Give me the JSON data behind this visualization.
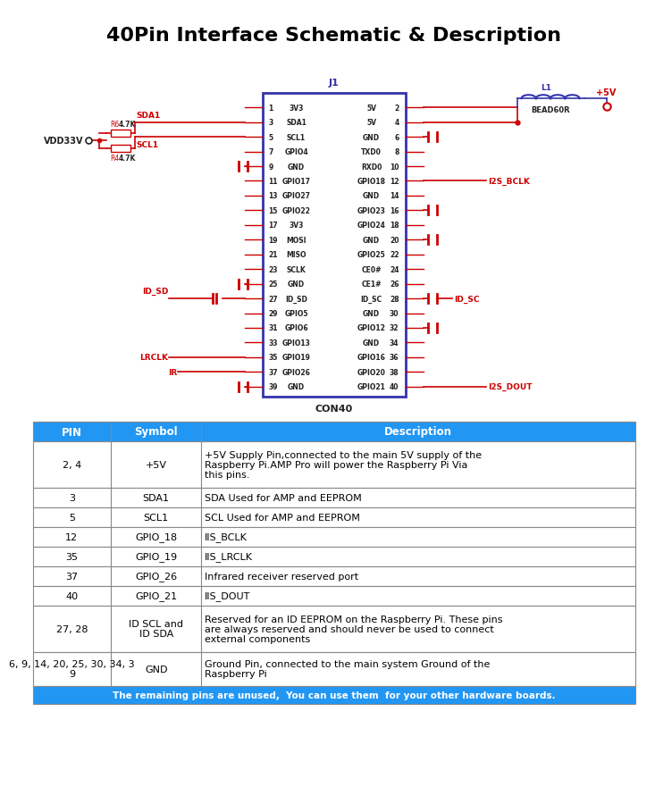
{
  "title": "40Pin Interface Schematic & Description",
  "title_fontsize": 16,
  "bg_color": "#ffffff",
  "red": "#cc0000",
  "dark": "#222222",
  "blue": "#3333aa",
  "pin_left": [
    {
      "num": "1",
      "name": "3V3"
    },
    {
      "num": "3",
      "name": "SDA1"
    },
    {
      "num": "5",
      "name": "SCL1"
    },
    {
      "num": "7",
      "name": "GPIO4"
    },
    {
      "num": "9",
      "name": "GND"
    },
    {
      "num": "11",
      "name": "GPIO17"
    },
    {
      "num": "13",
      "name": "GPIO27"
    },
    {
      "num": "15",
      "name": "GPIO22"
    },
    {
      "num": "17",
      "name": "3V3"
    },
    {
      "num": "19",
      "name": "MOSI"
    },
    {
      "num": "21",
      "name": "MISO"
    },
    {
      "num": "23",
      "name": "SCLK"
    },
    {
      "num": "25",
      "name": "GND"
    },
    {
      "num": "27",
      "name": "ID_SD"
    },
    {
      "num": "29",
      "name": "GPIO5"
    },
    {
      "num": "31",
      "name": "GPIO6"
    },
    {
      "num": "33",
      "name": "GPIO13"
    },
    {
      "num": "35",
      "name": "GPIO19"
    },
    {
      "num": "37",
      "name": "GPIO26"
    },
    {
      "num": "39",
      "name": "GND"
    }
  ],
  "pin_right": [
    {
      "num": "2",
      "name": "5V"
    },
    {
      "num": "4",
      "name": "5V"
    },
    {
      "num": "6",
      "name": "GND"
    },
    {
      "num": "8",
      "name": "TXD0"
    },
    {
      "num": "10",
      "name": "RXD0"
    },
    {
      "num": "12",
      "name": "GPIO18"
    },
    {
      "num": "14",
      "name": "GND"
    },
    {
      "num": "16",
      "name": "GPIO23"
    },
    {
      "num": "18",
      "name": "GPIO24"
    },
    {
      "num": "20",
      "name": "GND"
    },
    {
      "num": "22",
      "name": "GPIO25"
    },
    {
      "num": "24",
      "name": "CE0#"
    },
    {
      "num": "26",
      "name": "CE1#"
    },
    {
      "num": "28",
      "name": "ID_SC"
    },
    {
      "num": "30",
      "name": "GND"
    },
    {
      "num": "32",
      "name": "GPIO12"
    },
    {
      "num": "34",
      "name": "GND"
    },
    {
      "num": "36",
      "name": "GPIO16"
    },
    {
      "num": "38",
      "name": "GPIO20"
    },
    {
      "num": "40",
      "name": "GPIO21"
    }
  ],
  "table_header_bg": "#2196f3",
  "table_header_color": "#ffffff",
  "table_rows": [
    {
      "pin": "2, 4",
      "sym": "+5V",
      "desc": "+5V Supply Pin,connected to the main 5V supply of the\nRaspberry Pi.AMP Pro will power the Raspberry Pi Via\nthis pins.",
      "lines": 3
    },
    {
      "pin": "3",
      "sym": "SDA1",
      "desc": "SDA Used for AMP and EEPROM",
      "lines": 1
    },
    {
      "pin": "5",
      "sym": "SCL1",
      "desc": "SCL Used for AMP and EEPROM",
      "lines": 1
    },
    {
      "pin": "12",
      "sym": "GPIO_18",
      "desc": "IIS_BCLK",
      "lines": 1
    },
    {
      "pin": "35",
      "sym": "GPIO_19",
      "desc": "IIS_LRCLK",
      "lines": 1
    },
    {
      "pin": "37",
      "sym": "GPIO_26",
      "desc": "Infrared receiver reserved port",
      "lines": 1
    },
    {
      "pin": "40",
      "sym": "GPIO_21",
      "desc": "IIS_DOUT",
      "lines": 1
    },
    {
      "pin": "27, 28",
      "sym": "ID SCL and\nID SDA",
      "desc": "Reserved for an ID EEPROM on the Raspberry Pi. These pins\nare always reserved and should never be used to connect\nexternal components",
      "lines": 3
    },
    {
      "pin": "6, 9, 14, 20, 25, 30, 34, 3\n9",
      "sym": "GND",
      "desc": "Ground Pin, connected to the main system Ground of the\nRaspberry Pi",
      "lines": 2
    }
  ],
  "table_footer": "The remaining pins are unused,  You can use them  for your other hardware boards.",
  "table_footer_bg": "#2196f3",
  "table_footer_color": "#ffffff"
}
